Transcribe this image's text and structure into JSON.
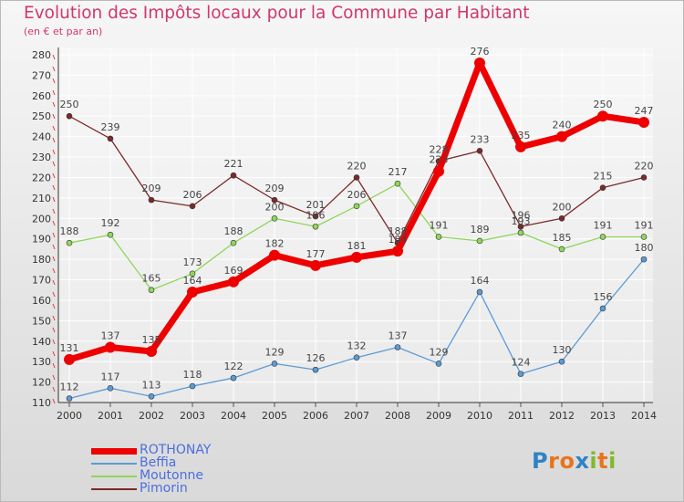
{
  "header": {
    "title": "Evolution des Impôts locaux pour la Commune par Habitant",
    "subtitle": "(en € et par an)"
  },
  "logo": {
    "letters": [
      "P",
      "r",
      "o",
      "x",
      "i",
      "t",
      "i"
    ],
    "colors": [
      "#2d83c5",
      "#e8741d",
      "#e8741d",
      "#2d83c5",
      "#7fba2a",
      "#e8741d",
      "#7fba2a"
    ]
  },
  "chart_data": {
    "type": "line",
    "title": "Evolution des Impôts locaux pour la Commune par Habitant",
    "subtitle": "(en € et par an)",
    "x": [
      "2000",
      "2001",
      "2002",
      "2003",
      "2004",
      "2005",
      "2006",
      "2007",
      "2008",
      "2009",
      "2010",
      "2011",
      "2012",
      "2013",
      "2014"
    ],
    "ylim": [
      110,
      280
    ],
    "yticks": [
      110,
      120,
      130,
      140,
      150,
      160,
      170,
      180,
      190,
      200,
      210,
      220,
      230,
      240,
      250,
      260,
      270,
      280
    ],
    "grid": true,
    "legend_position": "bottom-left",
    "series": [
      {
        "name": "ROTHONAY",
        "color": "#ee0000",
        "values": [
          131,
          137,
          135,
          164,
          169,
          182,
          177,
          181,
          184,
          223,
          276,
          235,
          240,
          250,
          247
        ],
        "labels": [
          "131",
          "137",
          "135",
          "164",
          "169",
          "182",
          "177",
          "181",
          "184",
          "223",
          "276",
          "235",
          "240",
          "250",
          "247"
        ]
      },
      {
        "name": "Beffia",
        "color": "#5b9bd5",
        "values": [
          112,
          117,
          113,
          118,
          122,
          129,
          126,
          132,
          137,
          129,
          164,
          124,
          130,
          156,
          180
        ],
        "labels": [
          "112",
          "117",
          "113",
          "118",
          "122",
          "129",
          "126",
          "132",
          "137",
          "129",
          "164",
          "124",
          "130",
          "156",
          "180"
        ]
      },
      {
        "name": "Moutonne",
        "color": "#8fd65a",
        "values": [
          188,
          192,
          165,
          173,
          188,
          200,
          196,
          206,
          217,
          191,
          189,
          193,
          185,
          191,
          191
        ],
        "labels": [
          "188",
          "192",
          "165",
          "173",
          "188",
          "200",
          "196",
          "206",
          "217",
          "191",
          "189",
          "193",
          "185",
          "191",
          "191"
        ]
      },
      {
        "name": "Pimorin",
        "color": "#7a2a2a",
        "values": [
          250,
          239,
          209,
          206,
          221,
          209,
          201,
          220,
          188,
          228,
          233,
          196,
          200,
          215,
          220
        ],
        "labels": [
          "250",
          "239",
          "209",
          "206",
          "221",
          "209",
          "201",
          "220",
          "188",
          "228",
          "233",
          "196",
          "200",
          "215",
          "220"
        ]
      }
    ]
  }
}
